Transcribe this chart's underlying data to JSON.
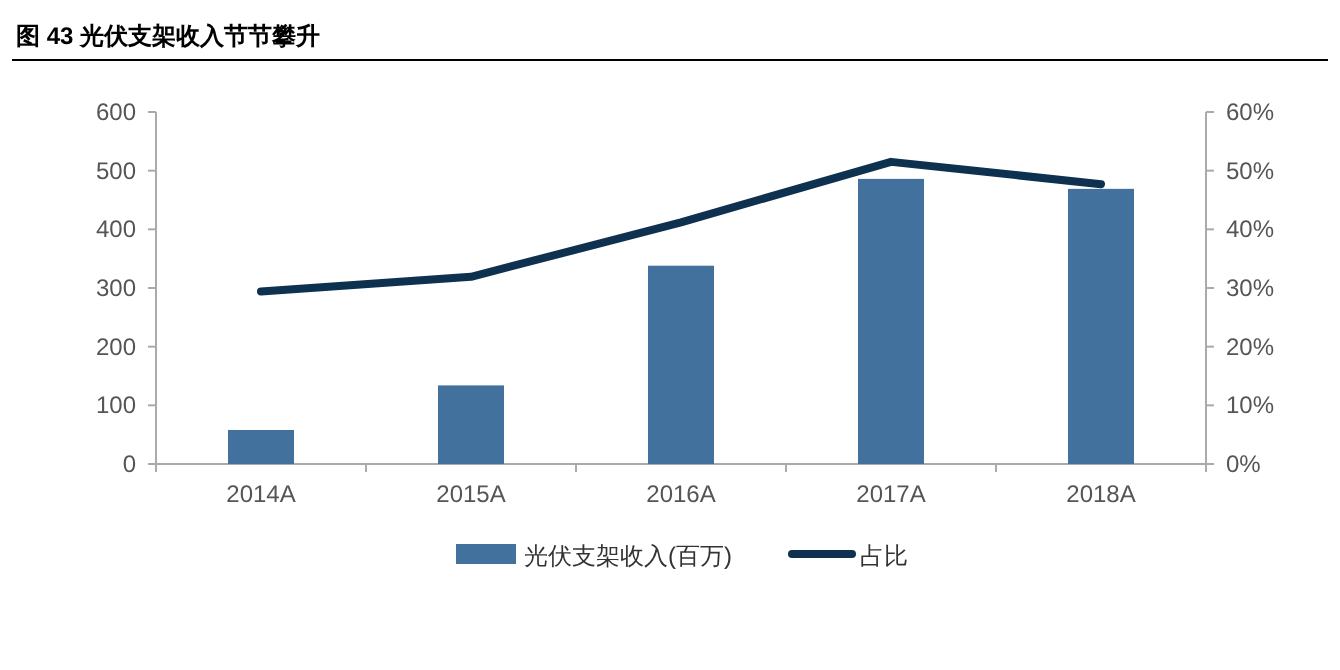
{
  "chart_data": {
    "type": "bar",
    "title": "图 43  光伏支架收入节节攀升",
    "categories": [
      "2014A",
      "2015A",
      "2016A",
      "2017A",
      "2018A"
    ],
    "series": [
      {
        "name": "光伏支架收入(百万)",
        "color": "#41719c",
        "values": [
          58,
          134,
          338,
          486,
          469
        ]
      },
      {
        "name": "占比",
        "type": "line",
        "axis": "y2",
        "color": "#0e3150",
        "values": [
          29.4,
          31.9,
          41.2,
          51.5,
          47.7
        ]
      }
    ],
    "ylim": [
      0,
      600
    ],
    "yticks": [
      0,
      100,
      200,
      300,
      400,
      500,
      600
    ],
    "y2lim": [
      0,
      60
    ],
    "y2ticks": [
      {
        "value": 0,
        "label": "0%"
      },
      {
        "value": 10,
        "label": "10%"
      },
      {
        "value": 20,
        "label": "20%"
      },
      {
        "value": 30,
        "label": "30%"
      },
      {
        "value": 40,
        "label": "40%"
      },
      {
        "value": 50,
        "label": "50%"
      },
      {
        "value": 60,
        "label": "60%"
      }
    ],
    "legend": "bottom",
    "grid": false
  }
}
